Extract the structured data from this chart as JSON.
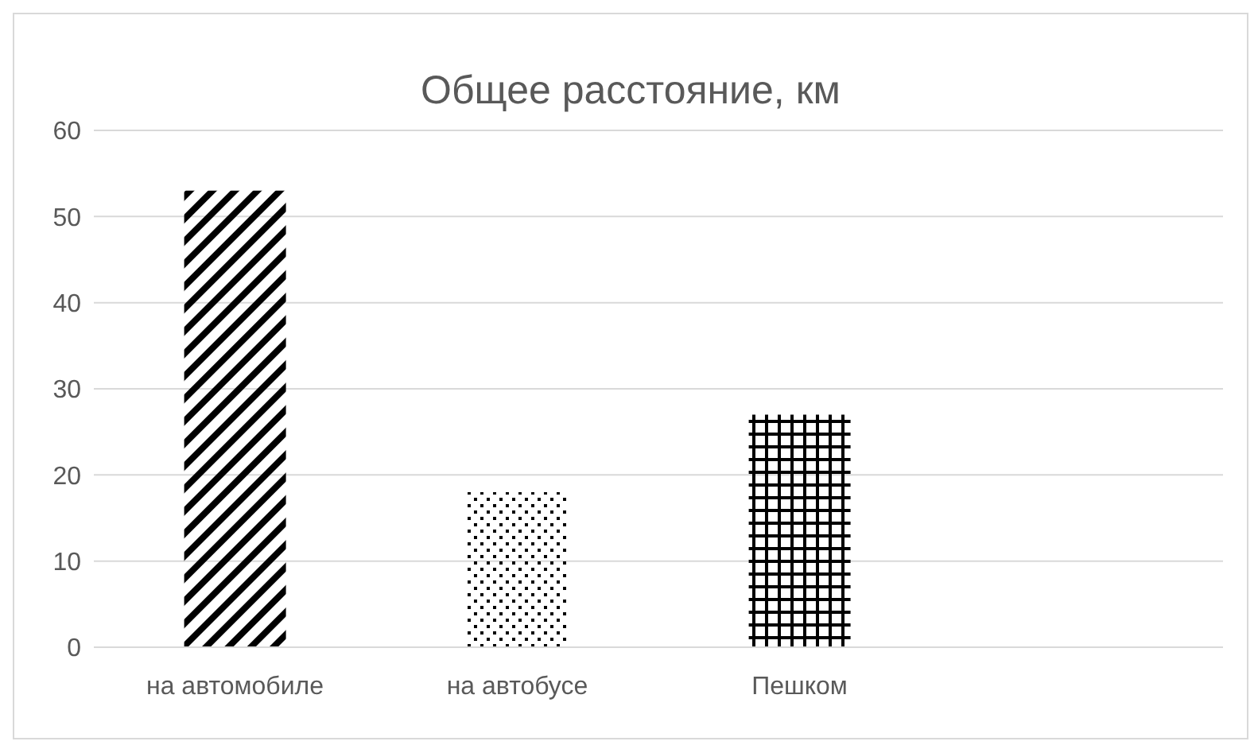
{
  "chart_data": {
    "type": "bar",
    "title": "Общее расстояние, км",
    "categories": [
      "на автомобиле",
      "на автобусе",
      "Пешком",
      null
    ],
    "values": [
      53,
      18,
      27,
      null
    ],
    "colors": [
      "#000000",
      "#000000",
      "#000000",
      "#000000"
    ],
    "ylim": [
      0,
      60
    ],
    "yticks": [
      0,
      10,
      20,
      30,
      40,
      50,
      60
    ],
    "grid": "y"
  }
}
